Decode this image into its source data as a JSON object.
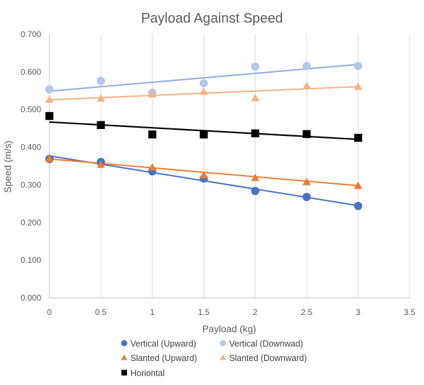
{
  "chart_data": {
    "type": "scatter",
    "title": "Payload Against Speed",
    "xlabel": "Payload (kg)",
    "ylabel": "Speed (m/s)",
    "xlim": [
      0,
      3.5
    ],
    "ylim": [
      0,
      0.7
    ],
    "xticks": [
      "0",
      "0.5",
      "1",
      "1.5",
      "2",
      "2.5",
      "3",
      "3.5"
    ],
    "yticks": [
      "0.000",
      "0.100",
      "0.200",
      "0.300",
      "0.400",
      "0.500",
      "0.600",
      "0.700"
    ],
    "grid": "vertical",
    "legend_position": "bottom",
    "trendlines": "linear",
    "series": [
      {
        "name": "Vertical (Upward)",
        "marker": "circle",
        "color": "#4472c4",
        "x": [
          0,
          0.5,
          1,
          1.5,
          2,
          2.5,
          3
        ],
        "y": [
          0.369,
          0.361,
          0.336,
          0.317,
          0.284,
          0.268,
          0.244
        ],
        "trend": [
          0.377,
          0.245
        ]
      },
      {
        "name": "Vertical (Downwad)",
        "marker": "circle",
        "color": "#b4c7e7",
        "trend_color": "#8faadc",
        "x": [
          0,
          0.5,
          1,
          1.5,
          2,
          2.5,
          3
        ],
        "y": [
          0.554,
          0.576,
          0.545,
          0.57,
          0.614,
          0.616,
          0.616
        ],
        "trend": [
          0.549,
          0.62
        ]
      },
      {
        "name": "Slanted (Upward)",
        "marker": "triangle",
        "color": "#ed7d31",
        "x": [
          0,
          0.5,
          1,
          1.5,
          2,
          2.5,
          3
        ],
        "y": [
          0.37,
          0.354,
          0.347,
          0.326,
          0.319,
          0.308,
          0.298
        ],
        "trend": [
          0.369,
          0.298
        ]
      },
      {
        "name": "Slanted (Downward)",
        "marker": "triangle",
        "color": "#f4b183",
        "x": [
          0,
          0.5,
          1,
          1.5,
          2,
          2.5,
          3
        ],
        "y": [
          0.527,
          0.53,
          0.541,
          0.548,
          0.531,
          0.563,
          0.561
        ],
        "trend": [
          0.526,
          0.561
        ]
      },
      {
        "name": "Horiontal",
        "marker": "square",
        "color": "#000000",
        "x": [
          0,
          0.5,
          1,
          1.5,
          2,
          2.5,
          3
        ],
        "y": [
          0.483,
          0.459,
          0.434,
          0.434,
          0.437,
          0.435,
          0.425
        ],
        "trend": [
          0.467,
          0.421
        ]
      }
    ]
  }
}
